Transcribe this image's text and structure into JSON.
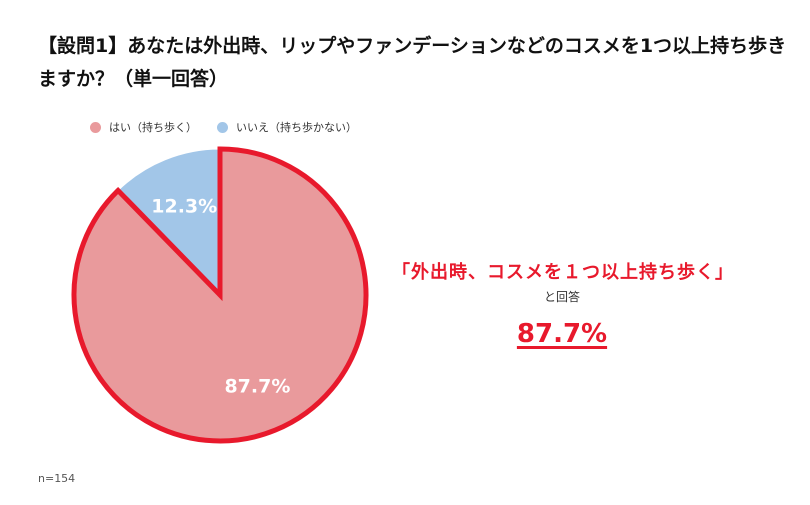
{
  "question": "【設問1】あなたは外出時、リップやファンデーションなどのコスメを1つ以上持ち歩きますか？（単一回答）",
  "callout": {
    "quote": "「外出時、コスメを１つ以上持ち歩く」",
    "sub": "と回答",
    "value": "87.7%"
  },
  "sample_size": "n=154",
  "colors": {
    "yes": "#e99a9c",
    "no": "#a2c6e8",
    "highlight": "#e8192c"
  },
  "chart_data": {
    "type": "pie",
    "title": "",
    "legend_position": "top-left",
    "slices": [
      {
        "label": "はい（持ち歩く）",
        "value": 87.7,
        "value_label": "87.7%",
        "color": "#e99a9c",
        "highlighted": true
      },
      {
        "label": "いいえ（持ち歩かない）",
        "value": 12.3,
        "value_label": "12.3%",
        "color": "#a2c6e8",
        "highlighted": false
      }
    ]
  }
}
